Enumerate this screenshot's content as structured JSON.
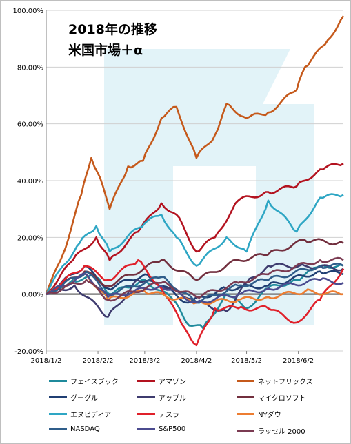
{
  "chart_data": {
    "type": "line",
    "title": "2018年の推移",
    "subtitle": "米国市場＋α",
    "ylim": [
      -20,
      100
    ],
    "yticks": [
      -20,
      0,
      20,
      40,
      60,
      80,
      100
    ],
    "ytick_labels": [
      "-20.00%",
      "0.00%",
      "20.00%",
      "40.00%",
      "60.00%",
      "80.00%",
      "100.00%"
    ],
    "xlim": [
      "2018-01-02",
      "2018-06-29"
    ],
    "xticks": [
      "2018-01-02",
      "2018-02-02",
      "2018-03-02",
      "2018-04-02",
      "2018-05-02",
      "2018-06-02"
    ],
    "xtick_labels": [
      "2018/1/2",
      "2018/2/2",
      "2018/3/2",
      "2018/4/2",
      "2018/5/2",
      "2018/6/2"
    ],
    "grid": true,
    "legend_position": "bottom",
    "series": [
      {
        "name": "フェイスブック",
        "color": "#1f8a9c",
        "x": [
          "2018-01-02",
          "2018-01-18",
          "2018-02-01",
          "2018-02-09",
          "2018-03-02",
          "2018-03-19",
          "2018-03-27",
          "2018-04-06",
          "2018-04-20",
          "2018-05-02",
          "2018-05-15",
          "2018-06-01",
          "2018-06-15",
          "2018-06-29"
        ],
        "values": [
          0,
          5,
          6,
          0,
          5,
          -2,
          -10,
          -12,
          0,
          -5,
          2,
          5,
          10,
          10
        ]
      },
      {
        "name": "アマゾン",
        "color": "#b3121f",
        "x": [
          "2018-01-02",
          "2018-01-18",
          "2018-02-01",
          "2018-02-09",
          "2018-02-26",
          "2018-03-12",
          "2018-03-21",
          "2018-04-02",
          "2018-04-13",
          "2018-04-27",
          "2018-05-15",
          "2018-06-01",
          "2018-06-15",
          "2018-06-29"
        ],
        "values": [
          0,
          12,
          20,
          12,
          22,
          32,
          28,
          15,
          20,
          33,
          36,
          38,
          44,
          46
        ]
      },
      {
        "name": "ネットフリックス",
        "color": "#c5591b",
        "x": [
          "2018-01-02",
          "2018-01-12",
          "2018-01-23",
          "2018-01-29",
          "2018-02-05",
          "2018-02-09",
          "2018-02-20",
          "2018-03-01",
          "2018-03-12",
          "2018-03-21",
          "2018-04-02",
          "2018-04-13",
          "2018-04-20",
          "2018-05-02",
          "2018-05-15",
          "2018-06-01",
          "2018-06-06",
          "2018-06-18",
          "2018-06-29"
        ],
        "values": [
          0,
          14,
          35,
          48,
          38,
          30,
          45,
          47,
          62,
          66,
          48,
          56,
          67,
          62,
          64,
          72,
          80,
          88,
          98
        ]
      },
      {
        "name": "グーグル",
        "color": "#203f73",
        "x": [
          "2018-01-02",
          "2018-01-25",
          "2018-02-08",
          "2018-03-02",
          "2018-03-28",
          "2018-04-20",
          "2018-05-15",
          "2018-06-15",
          "2018-06-29"
        ],
        "values": [
          0,
          10,
          2,
          7,
          -3,
          2,
          3,
          8,
          7
        ]
      },
      {
        "name": "アップル",
        "color": "#3e3b6e",
        "x": [
          "2018-01-02",
          "2018-01-19",
          "2018-02-08",
          "2018-02-26",
          "2018-03-20",
          "2018-04-02",
          "2018-04-20",
          "2018-05-02",
          "2018-05-15",
          "2018-06-06",
          "2018-06-29"
        ],
        "values": [
          0,
          3,
          -8,
          5,
          2,
          -3,
          -6,
          4,
          10,
          10,
          9
        ]
      },
      {
        "name": "マイクロソフト",
        "color": "#722f3e",
        "x": [
          "2018-01-02",
          "2018-01-25",
          "2018-02-08",
          "2018-03-12",
          "2018-04-02",
          "2018-04-27",
          "2018-05-15",
          "2018-06-06",
          "2018-06-29"
        ],
        "values": [
          0,
          8,
          3,
          12,
          5,
          12,
          14,
          19,
          18
        ]
      },
      {
        "name": "エヌビディア",
        "color": "#2ea6c4",
        "x": [
          "2018-01-02",
          "2018-01-12",
          "2018-01-22",
          "2018-02-01",
          "2018-02-09",
          "2018-03-02",
          "2018-03-12",
          "2018-03-21",
          "2018-04-02",
          "2018-04-20",
          "2018-05-02",
          "2018-05-15",
          "2018-06-01",
          "2018-06-15",
          "2018-06-29"
        ],
        "values": [
          0,
          10,
          18,
          24,
          15,
          25,
          28,
          20,
          10,
          20,
          15,
          33,
          22,
          34,
          35
        ]
      },
      {
        "name": "テスラ",
        "color": "#e0202a",
        "x": [
          "2018-01-02",
          "2018-01-25",
          "2018-02-08",
          "2018-02-26",
          "2018-03-12",
          "2018-03-26",
          "2018-04-02",
          "2018-04-13",
          "2018-04-27",
          "2018-05-15",
          "2018-06-01",
          "2018-06-15",
          "2018-06-29"
        ],
        "values": [
          0,
          10,
          5,
          12,
          2,
          -12,
          -18,
          -5,
          -5,
          -5,
          -10,
          -2,
          9
        ]
      },
      {
        "name": "NYダウ",
        "color": "#ed7d31",
        "x": [
          "2018-01-02",
          "2018-01-26",
          "2018-02-08",
          "2018-03-02",
          "2018-04-02",
          "2018-04-27",
          "2018-05-15",
          "2018-06-06",
          "2018-06-29"
        ],
        "values": [
          0,
          7,
          -2,
          1,
          -3,
          -2,
          -1,
          1,
          0
        ]
      },
      {
        "name": "NASDAQ",
        "color": "#2f5d8a",
        "x": [
          "2018-01-02",
          "2018-01-26",
          "2018-02-08",
          "2018-03-12",
          "2018-04-02",
          "2018-04-27",
          "2018-05-15",
          "2018-06-15",
          "2018-06-29"
        ],
        "values": [
          0,
          8,
          0,
          6,
          -3,
          3,
          5,
          10,
          10
        ]
      },
      {
        "name": "S&P500",
        "color": "#4b4b8f",
        "x": [
          "2018-01-02",
          "2018-01-26",
          "2018-02-08",
          "2018-03-12",
          "2018-04-02",
          "2018-04-27",
          "2018-05-15",
          "2018-06-15",
          "2018-06-29"
        ],
        "values": [
          0,
          7,
          -1,
          3,
          -3,
          0,
          2,
          5,
          4
        ]
      },
      {
        "name": "ラッセル 2000",
        "color": "#7b3b52",
        "x": [
          "2018-01-02",
          "2018-01-26",
          "2018-02-08",
          "2018-03-12",
          "2018-04-02",
          "2018-04-27",
          "2018-05-15",
          "2018-06-15",
          "2018-06-29"
        ],
        "values": [
          0,
          5,
          -2,
          4,
          -1,
          4,
          7,
          12,
          12
        ]
      }
    ]
  }
}
